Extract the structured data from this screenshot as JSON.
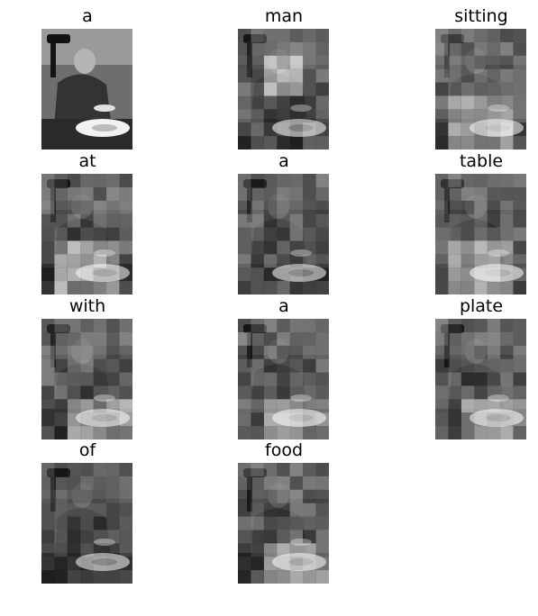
{
  "caption_words": [
    "a",
    "man",
    "sitting",
    "at",
    "a",
    "table",
    "with",
    "a",
    "plate",
    "of",
    "food"
  ],
  "image_description_icons": [
    "grayscale-photo",
    "attention-heatmap-overlay"
  ]
}
